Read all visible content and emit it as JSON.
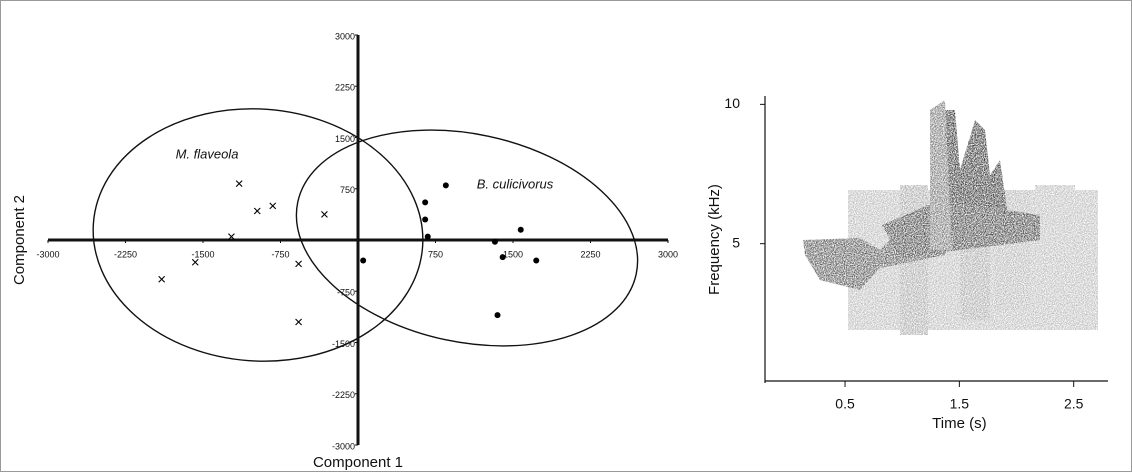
{
  "chart_data": [
    {
      "type": "scatter",
      "x_label": "Component 1",
      "y_label": "Component 2",
      "xlim": [
        -3000,
        3000
      ],
      "ylim": [
        -3000,
        3000
      ],
      "xticks": [
        -3000,
        -2250,
        -1500,
        -750,
        750,
        1500,
        2250,
        3000
      ],
      "yticks": [
        3000,
        2250,
        1500,
        750,
        -750,
        -1500,
        -2250,
        -3000
      ],
      "series": [
        {
          "name": "M. flaveola",
          "marker": "x",
          "color": "#000000",
          "x": [
            -1150,
            -975,
            -825,
            -1225,
            -1575,
            -1900,
            -575,
            -325,
            -575
          ],
          "y": [
            825,
            425,
            500,
            50,
            -325,
            -575,
            -350,
            375,
            -1200
          ]
        },
        {
          "name": "B. culicivorus",
          "marker": "dot",
          "color": "#000000",
          "x": [
            650,
            650,
            675,
            850,
            50,
            1325,
            1575,
            1400,
            1725,
            1350
          ],
          "y": [
            550,
            300,
            50,
            800,
            -300,
            -25,
            150,
            -250,
            -300,
            -1100
          ]
        }
      ]
    },
    {
      "type": "spectrogram",
      "x_label": "Time (s)",
      "y_label": "Frequency (kHz)",
      "xlim": [
        -0.2,
        2.8
      ],
      "ylim": [
        0,
        10.3
      ],
      "xticks": [
        0.5,
        1.5,
        2.5
      ],
      "yticks": [
        5,
        10
      ]
    }
  ]
}
